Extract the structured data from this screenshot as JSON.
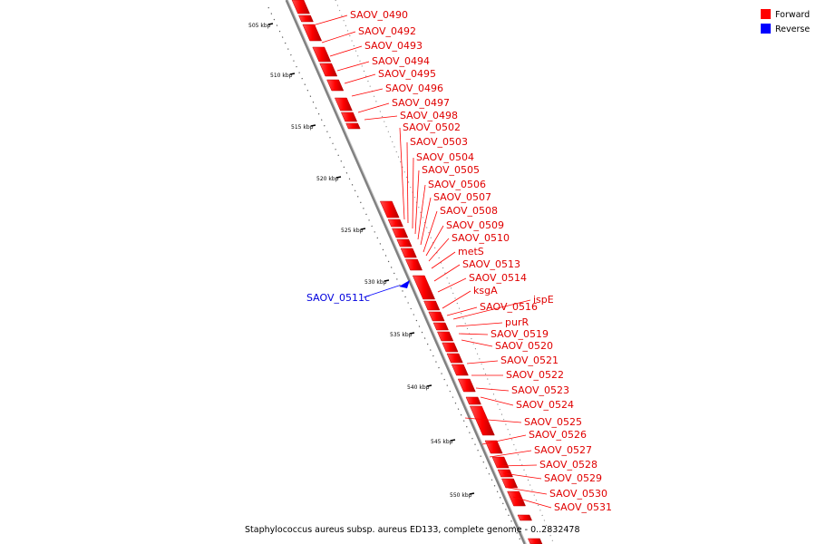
{
  "legend": [
    {
      "label": "Forward",
      "color": "#ff0000"
    },
    {
      "label": "Reverse",
      "color": "#0000ff"
    }
  ],
  "caption": "Staphylococcus aureus subsp. aureus ED133, complete genome - 0..2832478",
  "scale_ticks": [
    "505 kbp",
    "510 kbp",
    "515 kbp",
    "520 kbp",
    "525 kbp",
    "530 kbp",
    "535 kbp",
    "540 kbp",
    "545 kbp",
    "550 kbp"
  ],
  "forward_genes": [
    "SAOV_0490",
    "SAOV_0492",
    "SAOV_0493",
    "SAOV_0494",
    "SAOV_0495",
    "SAOV_0496",
    "SAOV_0497",
    "SAOV_0498",
    "SAOV_0502",
    "SAOV_0503",
    "SAOV_0504",
    "SAOV_0505",
    "SAOV_0506",
    "SAOV_0507",
    "SAOV_0508",
    "SAOV_0509",
    "SAOV_0510",
    "metS",
    "SAOV_0513",
    "SAOV_0514",
    "ksgA",
    "SAOV_0516",
    "ispE",
    "purR",
    "SAOV_0519",
    "SAOV_0520",
    "SAOV_0521",
    "SAOV_0522",
    "SAOV_0523",
    "SAOV_0524",
    "SAOV_0525",
    "SAOV_0526",
    "SAOV_0527",
    "SAOV_0528",
    "SAOV_0529",
    "SAOV_0530",
    "SAOV_0531"
  ],
  "reverse_genes": [
    "SAOV_0511c"
  ],
  "colors": {
    "forward": "#ff0000",
    "reverse": "#0000ff",
    "backbone": "#808080"
  }
}
